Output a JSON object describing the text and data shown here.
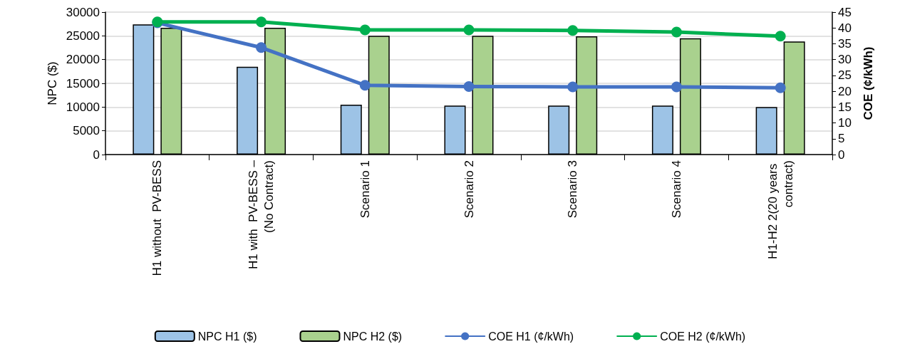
{
  "chart_data": {
    "type": "bar",
    "ylabel": "NPC ($)",
    "y2label": "COE (¢/kWh)",
    "categories": [
      "H1 without  PV-BESS",
      "H1 with  PV-BESS – (No Contract)",
      "Scenario 1",
      "Scenario 2",
      "Scenario 3",
      "Scenario 4",
      "H1-H2 2(20 years contract)"
    ],
    "series": [
      {
        "name": "NPC H1 ($)",
        "color": "#9dc3e6",
        "values": [
          27400,
          18500,
          10500,
          10300,
          10300,
          10300,
          10000
        ]
      },
      {
        "name": "NPC H2 ($)",
        "color": "#a9d18e",
        "values": [
          26700,
          26700,
          25000,
          25000,
          24900,
          24500,
          23800
        ]
      },
      {
        "name": "COE H1 (¢/kWh)",
        "type": "line",
        "axis": "y2",
        "color": "#4472c4",
        "values": [
          41.6,
          33.8,
          21.9,
          21.5,
          21.4,
          21.4,
          21.1
        ]
      },
      {
        "name": "COE H2 (¢/kWh)",
        "type": "line",
        "axis": "y2",
        "color": "#00b050",
        "values": [
          41.9,
          41.9,
          39.4,
          39.4,
          39.2,
          38.7,
          37.4
        ]
      }
    ],
    "ylim": [
      0,
      30000
    ],
    "yticks": [
      0,
      5000,
      10000,
      15000,
      20000,
      25000,
      30000
    ],
    "y2lim": [
      0,
      45
    ],
    "y2ticks": [
      0,
      5,
      10,
      15,
      20,
      25,
      30,
      35,
      40,
      45
    ],
    "grid": "y",
    "legend": "bottom",
    "marker": "circle",
    "line_style": "solid"
  }
}
